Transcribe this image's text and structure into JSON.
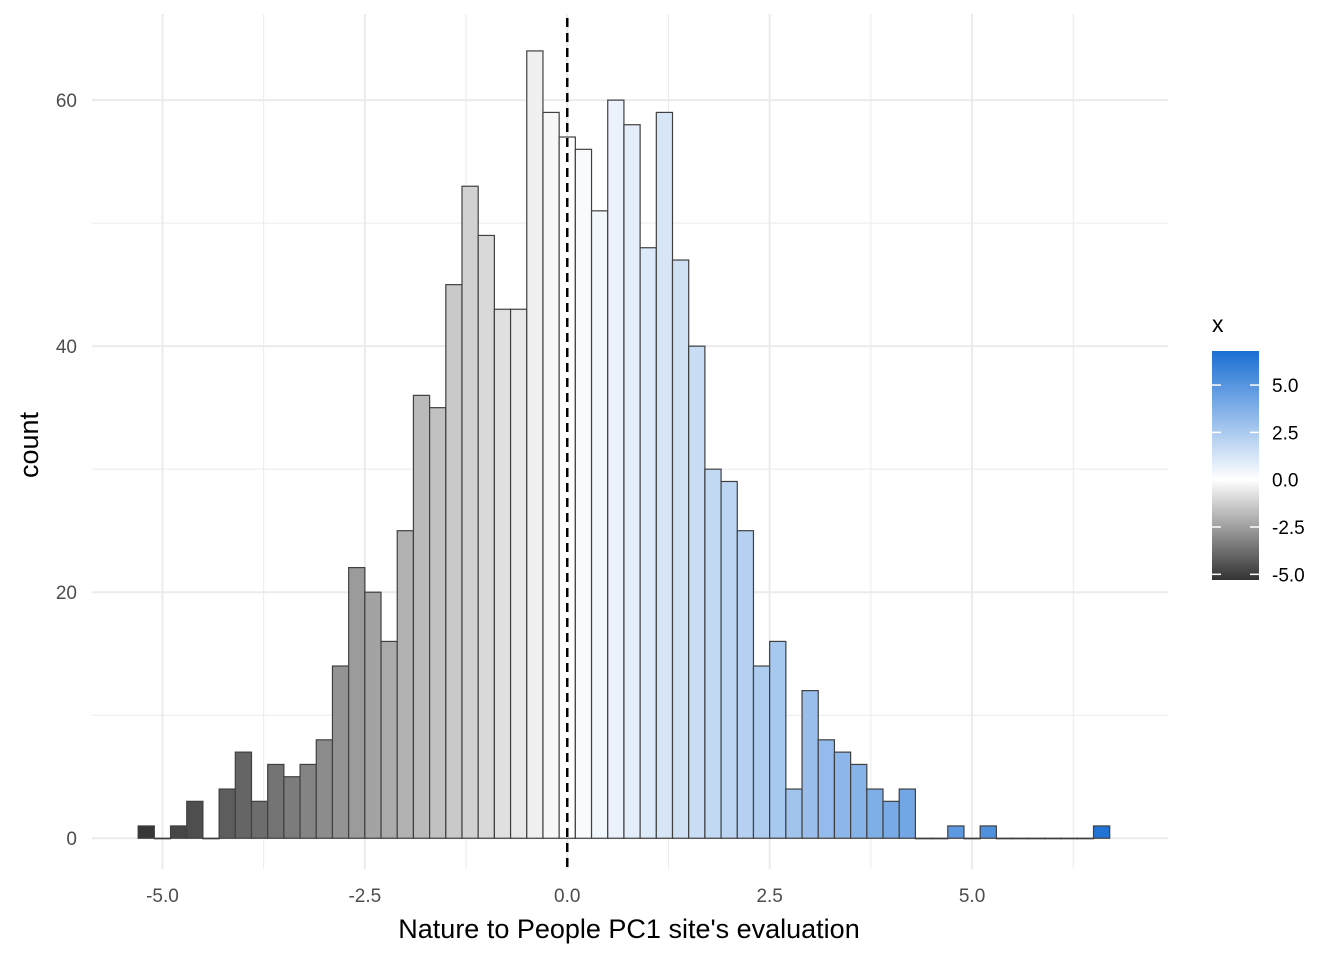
{
  "chart_data": {
    "type": "bar",
    "subtype": "histogram",
    "title": "",
    "xlabel": "Nature to People PC1 site's evaluation",
    "ylabel": "count",
    "xlim": [
      -5.87,
      7.42
    ],
    "ylim": [
      -2.5,
      67.0
    ],
    "x_ticks": [
      -5.0,
      -2.5,
      0.0,
      2.5,
      5.0
    ],
    "x_tick_labels": [
      "-5.0",
      "-2.5",
      "0.0",
      "2.5",
      "5.0"
    ],
    "y_ticks": [
      0,
      20,
      40,
      60
    ],
    "y_tick_labels": [
      "0",
      "20",
      "40",
      "60"
    ],
    "grid": true,
    "bin_width": 0.2,
    "bin_centers": [
      -5.2,
      -5.0,
      -4.8,
      -4.6,
      -4.4,
      -4.2,
      -4.0,
      -3.8,
      -3.6,
      -3.4,
      -3.2,
      -3.0,
      -2.8,
      -2.6,
      -2.4,
      -2.2,
      -2.0,
      -1.8,
      -1.6,
      -1.4,
      -1.2,
      -1.0,
      -0.8,
      -0.6,
      -0.4,
      -0.2,
      0.0,
      0.2,
      0.4,
      0.6,
      0.8,
      1.0,
      1.2,
      1.4,
      1.6,
      1.8,
      2.0,
      2.2,
      2.4,
      2.6,
      2.8,
      3.0,
      3.2,
      3.4,
      3.6,
      3.8,
      4.0,
      4.2,
      4.4,
      4.6,
      4.8,
      5.0,
      5.2,
      5.4,
      5.6,
      5.8,
      6.0,
      6.2,
      6.4,
      6.6
    ],
    "values": [
      1,
      0,
      1,
      3,
      0,
      4,
      7,
      3,
      6,
      5,
      6,
      8,
      14,
      22,
      20,
      16,
      25,
      36,
      35,
      45,
      53,
      49,
      43,
      43,
      64,
      59,
      57,
      56,
      51,
      60,
      58,
      48,
      59,
      47,
      40,
      30,
      29,
      25,
      14,
      16,
      4,
      12,
      8,
      7,
      6,
      4,
      3,
      4,
      0,
      0,
      1,
      0,
      1,
      0,
      0,
      0,
      0,
      0,
      0,
      1
    ],
    "vline": {
      "x": 0.0,
      "style": "dashed"
    },
    "color_scale": {
      "title": "x",
      "type": "gradient",
      "domain": [
        -5.3,
        6.8
      ],
      "low": "#333333",
      "mid": "#ffffff",
      "high": "#1a6fd4",
      "midpoint": 0.0,
      "ticks": [
        5.0,
        2.5,
        0.0,
        -2.5,
        -5.0
      ],
      "tick_labels": [
        "5.0",
        "2.5",
        "0.0",
        "-2.5",
        "-5.0"
      ]
    },
    "bar_outline": "#404040",
    "grid_color": "#ebebeb"
  }
}
